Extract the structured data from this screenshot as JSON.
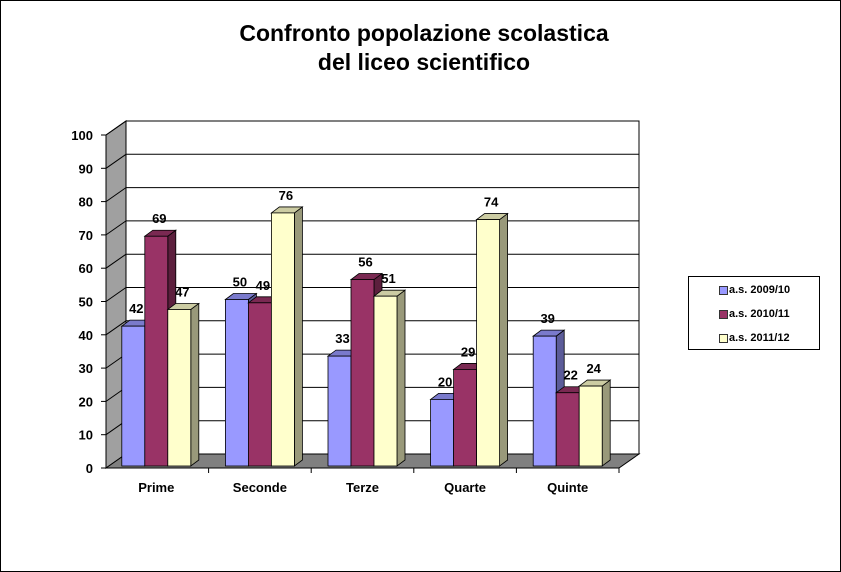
{
  "chart_data": {
    "type": "bar",
    "title": [
      "Confronto popolazione scolastica",
      "del liceo scientifico"
    ],
    "categories": [
      "Prime",
      "Seconde",
      "Terze",
      "Quarte",
      "Quinte"
    ],
    "series": [
      {
        "name": "a.s. 2009/10",
        "values": [
          42,
          50,
          33,
          20,
          39
        ],
        "color": "#9999FF"
      },
      {
        "name": "a.s. 2010/11",
        "values": [
          69,
          49,
          56,
          29,
          22
        ],
        "color": "#993366"
      },
      {
        "name": "a.s. 2011/12",
        "values": [
          47,
          76,
          51,
          74,
          24
        ],
        "color": "#FFFFCC"
      }
    ],
    "ylim": [
      0,
      100
    ],
    "yticks": [
      0,
      10,
      20,
      30,
      40,
      50,
      60,
      70,
      80,
      90,
      100
    ],
    "grid": true,
    "legend": "right",
    "three_d": true
  }
}
